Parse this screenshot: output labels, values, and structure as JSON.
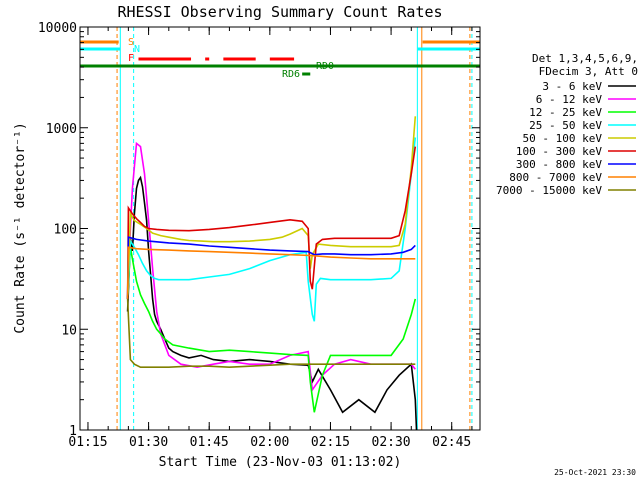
{
  "chart_data": {
    "type": "line",
    "title": "RHESSI Observing Summary Count Rates",
    "xlabel": "Start Time (23-Nov-03 01:13:02)",
    "ylabel": "Count Rate (s⁻¹ detector⁻¹)",
    "y_scale": "log",
    "ylim": [
      1,
      10000
    ],
    "xlim_minutes": [
      73.03,
      172.0
    ],
    "x_ticks": [
      {
        "label": "01:15",
        "minutes": 75
      },
      {
        "label": "01:30",
        "minutes": 90
      },
      {
        "label": "01:45",
        "minutes": 105
      },
      {
        "label": "02:00",
        "minutes": 120
      },
      {
        "label": "02:15",
        "minutes": 135
      },
      {
        "label": "02:30",
        "minutes": 150
      },
      {
        "label": "02:45",
        "minutes": 165
      }
    ],
    "y_ticks": [
      {
        "label": "1",
        "value": 1
      },
      {
        "label": "10",
        "value": 10
      },
      {
        "label": "100",
        "value": 100
      },
      {
        "label": "1000",
        "value": 1000
      },
      {
        "label": "10000",
        "value": 10000
      }
    ],
    "legend_header": [
      "Det 1,3,4,5,6,9,",
      "FDecim 3, Att 0"
    ],
    "legend_placement": "right",
    "series": [
      {
        "name": "3 - 6 keV",
        "color": "#000000",
        "x": [
          84.8,
          85.5,
          86.0,
          86.5,
          87.0,
          87.5,
          88.0,
          88.5,
          89.0,
          89.5,
          90.0,
          90.5,
          91.0,
          91.5,
          92.0,
          93.0,
          94.0,
          95.0,
          96.0,
          98.0,
          100.0,
          103.0,
          106.0,
          110.0,
          115.0,
          120.0,
          125.0,
          129.5,
          130.5,
          132.0,
          135.0,
          138.0,
          142.0,
          146.0,
          149.0,
          152.0,
          155.0,
          156.0,
          156.3
        ],
        "y": [
          15,
          80,
          60,
          140,
          250,
          300,
          320,
          260,
          180,
          120,
          60,
          35,
          20,
          14,
          12,
          10,
          8,
          6.5,
          6,
          5.5,
          5.2,
          5.5,
          5,
          4.8,
          5,
          4.8,
          4.5,
          4.4,
          3,
          4,
          2.5,
          1.5,
          2,
          1.5,
          2.5,
          3.5,
          4.5,
          2,
          1
        ]
      },
      {
        "name": "6 - 12 keV",
        "color": "#ff00ff",
        "x": [
          84.8,
          85.5,
          86.0,
          87.0,
          88.0,
          89.0,
          90.0,
          91.0,
          92.0,
          93.0,
          95.0,
          98.0,
          102.0,
          106.0,
          110.0,
          115.0,
          120.0,
          125.0,
          129.5,
          130.5,
          133.0,
          136.0,
          140.0,
          145.0,
          150.0,
          155.0,
          156.0
        ],
        "y": [
          20,
          100,
          250,
          700,
          650,
          350,
          120,
          40,
          15,
          9,
          5.5,
          4.5,
          4.2,
          4.5,
          4.8,
          4.5,
          4.5,
          5.5,
          6,
          2.5,
          3.5,
          4.5,
          5,
          4.5,
          4.5,
          4.5,
          4
        ]
      },
      {
        "name": "12 - 25 keV",
        "color": "#00ff00",
        "x": [
          84.8,
          85.5,
          86.2,
          87.0,
          88.0,
          89.0,
          90.0,
          91.0,
          92.0,
          93.0,
          94.0,
          96.0,
          100.0,
          105.0,
          110.0,
          115.0,
          120.0,
          125.0,
          129.5,
          130.0,
          131.0,
          133.0,
          135.0,
          140.0,
          145.0,
          150.0,
          153.0,
          155.0,
          156.0
        ],
        "y": [
          20,
          65,
          45,
          30,
          22,
          18,
          15,
          12,
          10,
          9,
          8,
          7,
          6.5,
          6,
          6.2,
          6,
          5.8,
          5.6,
          5.5,
          3,
          1.5,
          3.5,
          5.5,
          5.5,
          5.5,
          5.5,
          8,
          14,
          20
        ]
      },
      {
        "name": "25 - 50 keV",
        "color": "#00ffff",
        "x": [
          84.8,
          85.5,
          86.5,
          87.5,
          88.5,
          89.5,
          90.5,
          91.5,
          92.5,
          94.0,
          97.0,
          100.0,
          105.0,
          110.0,
          115.0,
          120.0,
          125.0,
          129.0,
          129.5,
          130.5,
          131.0,
          131.5,
          132.5,
          135.0,
          140.0,
          145.0,
          150.0,
          152.0,
          153.5,
          155.0,
          156.0
        ],
        "y": [
          20,
          75,
          65,
          55,
          45,
          38,
          34,
          32,
          31,
          31,
          31,
          31,
          33,
          35,
          40,
          48,
          55,
          58,
          30,
          14,
          12,
          28,
          32,
          31,
          31,
          31,
          32,
          38,
          100,
          350,
          800
        ]
      },
      {
        "name": "50 - 100 keV",
        "color": "#cccc00",
        "x": [
          84.8,
          85.5,
          86.5,
          88.0,
          89.5,
          91.0,
          93.0,
          95.0,
          98.0,
          100.0,
          103.0,
          106.0,
          110.0,
          115.0,
          120.0,
          123.0,
          125.0,
          128.0,
          129.5,
          130.0,
          130.5,
          132.0,
          135.0,
          140.0,
          145.0,
          150.0,
          152.0,
          153.5,
          155.0,
          156.0
        ],
        "y": [
          20,
          140,
          120,
          110,
          100,
          90,
          85,
          82,
          78,
          76,
          75,
          74,
          74,
          75,
          78,
          82,
          88,
          100,
          85,
          40,
          55,
          70,
          68,
          66,
          66,
          66,
          68,
          110,
          400,
          1300
        ]
      },
      {
        "name": "100 - 300 keV",
        "color": "#dd0000",
        "x": [
          84.8,
          85.0,
          86.0,
          87.0,
          88.0,
          89.0,
          90.0,
          92.0,
          95.0,
          100.0,
          105.0,
          110.0,
          115.0,
          120.0,
          125.0,
          128.0,
          129.5,
          130.0,
          130.5,
          131.5,
          133.0,
          136.0,
          140.0,
          145.0,
          150.0,
          152.0,
          153.5,
          155.0,
          156.0
        ],
        "y": [
          20,
          160,
          140,
          125,
          115,
          105,
          100,
          98,
          96,
          95,
          98,
          102,
          108,
          115,
          122,
          118,
          100,
          30,
          25,
          70,
          78,
          80,
          80,
          80,
          80,
          85,
          150,
          350,
          650
        ]
      },
      {
        "name": "300 - 800 keV",
        "color": "#0000ff",
        "x": [
          84.8,
          85.0,
          87.0,
          90.0,
          95.0,
          100.0,
          105.0,
          110.0,
          115.0,
          120.0,
          125.0,
          129.5,
          131.0,
          133.0,
          136.0,
          140.0,
          145.0,
          150.0,
          153.0,
          155.0,
          156.0
        ],
        "y": [
          20,
          82,
          78,
          75,
          72,
          70,
          67,
          65,
          63,
          61,
          60,
          59,
          55,
          56,
          56,
          55,
          55,
          56,
          58,
          62,
          68
        ]
      },
      {
        "name": "800 - 7000 keV",
        "color": "#ff8000",
        "x": [
          84.8,
          85.0,
          87.0,
          90.0,
          95.0,
          100.0,
          105.0,
          110.0,
          115.0,
          120.0,
          125.0,
          130.0,
          135.0,
          140.0,
          145.0,
          150.0,
          155.0,
          156.0
        ],
        "y": [
          20,
          65,
          63,
          62,
          61,
          60,
          59,
          58,
          57,
          56,
          55,
          54,
          52,
          51,
          50,
          50,
          50,
          50
        ]
      },
      {
        "name": "7000 - 15000 keV",
        "color": "#808000",
        "x": [
          84.8,
          85.5,
          86.5,
          88.0,
          90.0,
          95.0,
          100.0,
          105.0,
          110.0,
          115.0,
          120.0,
          125.0,
          130.0,
          135.0,
          140.0,
          145.0,
          150.0,
          155.0,
          156.0
        ],
        "y": [
          20,
          5,
          4.5,
          4.2,
          4.2,
          4.2,
          4.3,
          4.3,
          4.2,
          4.3,
          4.4,
          4.5,
          4.5,
          4.5,
          4.5,
          4.5,
          4.5,
          4.5,
          4.5
        ]
      }
    ],
    "flag_bars": [
      {
        "label": "S",
        "color": "#ff8000"
      },
      {
        "label": "N",
        "color": "#00ffff"
      },
      {
        "label": "F",
        "color": "#ff0000"
      },
      {
        "label": "RD0",
        "color": "#008000"
      },
      {
        "label": "RD6",
        "color": "#008000"
      }
    ],
    "timestamp": "25-Oct-2021 23:30"
  }
}
